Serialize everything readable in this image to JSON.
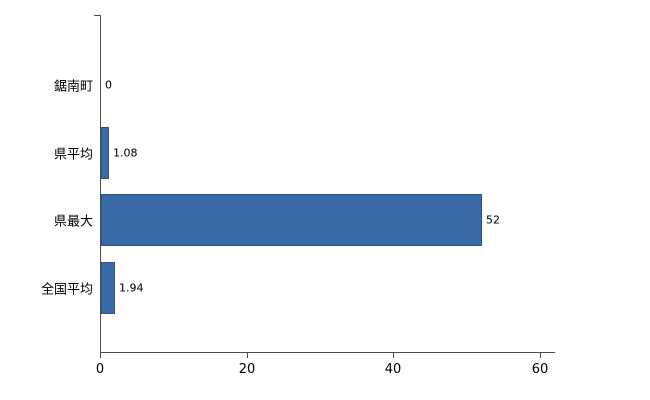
{
  "chart_data": {
    "type": "bar",
    "orientation": "horizontal",
    "title": "",
    "xlabel": "",
    "ylabel": "",
    "categories": [
      "鋸南町",
      "県平均",
      "県最大",
      "全国平均"
    ],
    "values": [
      0,
      1.08,
      52,
      1.94
    ],
    "value_labels": [
      "0",
      "1.08",
      "52",
      "1.94"
    ],
    "x_ticks": [
      0,
      20,
      40,
      60
    ],
    "x_tick_labels": [
      "0",
      "20",
      "40",
      "60"
    ],
    "xlim": [
      0,
      60
    ],
    "grid": false,
    "legend": "none",
    "bar_color": "#3a6ba8",
    "bar_border_color": "#2b5586",
    "axis_color": "#4d4d4d",
    "background_color": "#ffffff",
    "text_color": "#000000"
  }
}
